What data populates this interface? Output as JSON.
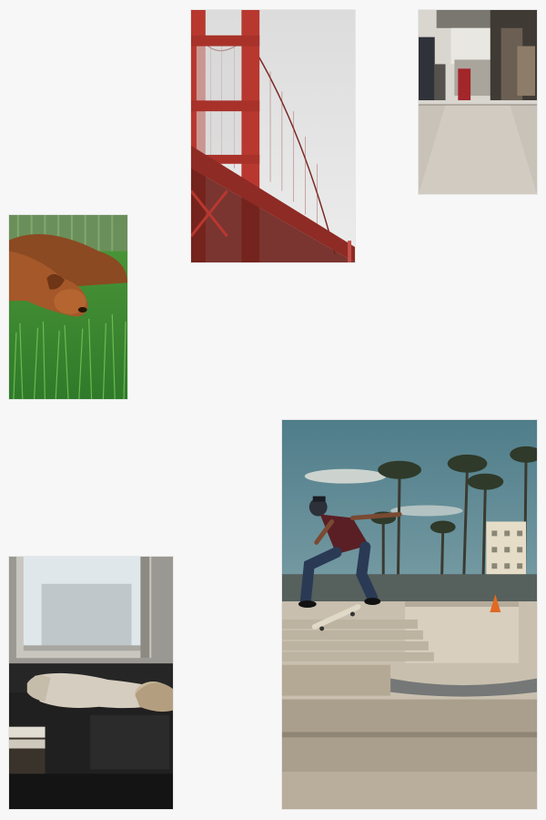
{
  "gallery": {
    "background": "#f7f7f7",
    "photos": [
      {
        "subject": "golden-gate-bridge",
        "palette": [
          "#b8382f",
          "#e4e4e4"
        ]
      },
      {
        "subject": "subway-car-interior",
        "palette": [
          "#c9c4bb",
          "#4a4a4a"
        ]
      },
      {
        "subject": "dogs-on-grass",
        "palette": [
          "#8b4a22",
          "#3ea33a"
        ]
      },
      {
        "subject": "skateboarder-jump",
        "palette": [
          "#4f7d8a",
          "#c9bfae"
        ]
      },
      {
        "subject": "person-on-couch-by-window",
        "palette": [
          "#1e1e1e",
          "#d8e2e6"
        ]
      }
    ]
  }
}
